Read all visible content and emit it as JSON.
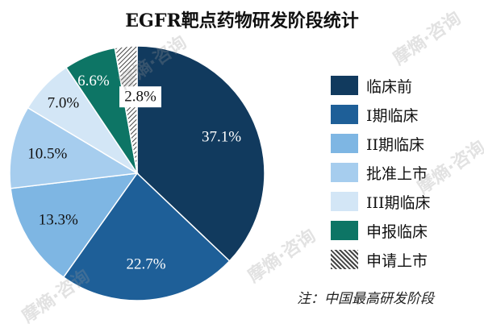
{
  "chart_data": {
    "type": "pie",
    "title": "EGFR靶点药物研发阶段统计",
    "note": "注：中国最高研发阶段",
    "slices": [
      {
        "name": "临床前",
        "value": 37.1,
        "label": "37.1%",
        "color": "#113a5e",
        "label_color": "#ffffff",
        "pattern": "solid"
      },
      {
        "name": "I期临床",
        "value": 22.7,
        "label": "22.7%",
        "color": "#1e5f98",
        "label_color": "#ffffff",
        "pattern": "solid"
      },
      {
        "name": "II期临床",
        "value": 13.3,
        "label": "13.3%",
        "color": "#7eb6e3",
        "label_color": "#111111",
        "pattern": "solid"
      },
      {
        "name": "批准上市",
        "value": 10.5,
        "label": "10.5%",
        "color": "#a6cdee",
        "label_color": "#111111",
        "pattern": "solid"
      },
      {
        "name": "III期临床",
        "value": 7.0,
        "label": "7.0%",
        "color": "#d3e6f6",
        "label_color": "#111111",
        "pattern": "solid"
      },
      {
        "name": "申报临床",
        "value": 6.6,
        "label": "6.6%",
        "color": "#0d7565",
        "label_color": "#ffffff",
        "pattern": "solid"
      },
      {
        "name": "申请上市",
        "value": 2.8,
        "label": "2.8%",
        "color": "#555555",
        "label_color": "#111111",
        "pattern": "hatch"
      }
    ]
  },
  "legend": {
    "items": [
      {
        "label": "临床前",
        "color": "#113a5e",
        "pattern": "solid"
      },
      {
        "label": "I期临床",
        "color": "#1e5f98",
        "pattern": "solid"
      },
      {
        "label": "II期临床",
        "color": "#7eb6e3",
        "pattern": "solid"
      },
      {
        "label": "批准上市",
        "color": "#a6cdee",
        "pattern": "solid"
      },
      {
        "label": "III期临床",
        "color": "#d3e6f6",
        "pattern": "solid"
      },
      {
        "label": "申报临床",
        "color": "#0d7565",
        "pattern": "solid"
      },
      {
        "label": "申请上市",
        "color": "#555555",
        "pattern": "hatch"
      }
    ]
  },
  "watermark": "摩熵·咨询"
}
